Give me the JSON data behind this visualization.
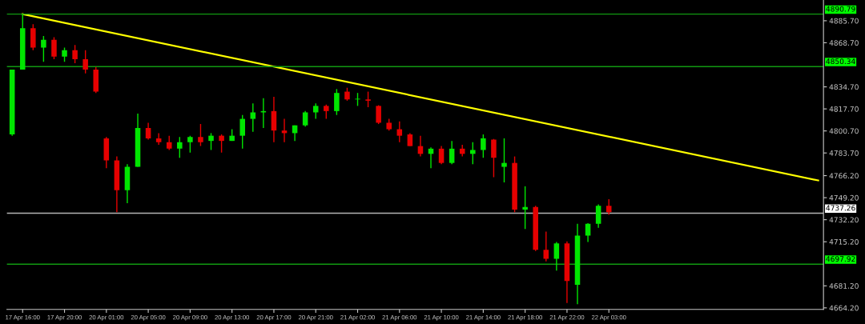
{
  "chart_data": {
    "type": "candlestick",
    "categories": [
      null,
      "17 Apr 16:00",
      null,
      null,
      null,
      "17 Apr 20:00",
      null,
      null,
      null,
      "20 Apr 01:00",
      null,
      null,
      null,
      "20 Apr 05:00",
      null,
      null,
      null,
      "20 Apr 09:00",
      null,
      null,
      null,
      "20 Apr 13:00",
      null,
      null,
      null,
      "20 Apr 17:00",
      null,
      null,
      null,
      "20 Apr 21:00",
      null,
      null,
      null,
      "21 Apr 02:00",
      null,
      null,
      null,
      "21 Apr 06:00",
      null,
      null,
      null,
      "21 Apr 10:00",
      null,
      null,
      null,
      "21 Apr 14:00",
      null,
      null,
      null,
      "21 Apr 18:00",
      null,
      null,
      null,
      "21 Apr 22:00",
      null,
      null,
      null,
      "22 Apr 03:00",
      null,
      null,
      null,
      null,
      null,
      null,
      null,
      null,
      null,
      null,
      null,
      null,
      null,
      null,
      null,
      null,
      null,
      null,
      null,
      null
    ],
    "ohlc": [
      [
        4798,
        4848,
        4797,
        4848
      ],
      [
        4848,
        4890.8,
        4848,
        4880
      ],
      [
        4880,
        4883,
        4863,
        4865
      ],
      [
        4865,
        4874,
        4854,
        4871
      ],
      [
        4871,
        4873,
        4856,
        4858
      ],
      [
        4858,
        4865,
        4854,
        4863
      ],
      [
        4863,
        4867,
        4853,
        4856
      ],
      [
        4856,
        4863,
        4845,
        4848
      ],
      [
        4848,
        4850,
        4830,
        4831
      ],
      [
        4795,
        4796,
        4772,
        4778
      ],
      [
        4778,
        4781,
        4738,
        4755
      ],
      [
        4755,
        4775,
        4745,
        4773
      ],
      [
        4773,
        4814,
        4773,
        4803
      ],
      [
        4803,
        4807,
        4794,
        4795
      ],
      [
        4795,
        4799,
        4790,
        4792
      ],
      [
        4792,
        4797,
        4786,
        4787
      ],
      [
        4787,
        4796,
        4780,
        4792
      ],
      [
        4792,
        4797,
        4784,
        4796
      ],
      [
        4796,
        4806,
        4789,
        4792
      ],
      [
        4793,
        4799,
        4786,
        4797
      ],
      [
        4797,
        4798,
        4784,
        4793
      ],
      [
        4793,
        4802,
        4793,
        4797
      ],
      [
        4797,
        4813,
        4787,
        4810
      ],
      [
        4810,
        4822,
        4800,
        4815
      ],
      [
        4815,
        4826,
        4803,
        4816
      ],
      [
        4816,
        4827,
        4792,
        4801
      ],
      [
        4801,
        4810,
        4792,
        4799
      ],
      [
        4799,
        4805,
        4793,
        4805
      ],
      [
        4805,
        4816,
        4804,
        4815
      ],
      [
        4815,
        4822,
        4810,
        4820
      ],
      [
        4820,
        4821,
        4810,
        4816
      ],
      [
        4816,
        4833,
        4813,
        4830
      ],
      [
        4831,
        4834,
        4824,
        4825
      ],
      [
        4825,
        4830,
        4820,
        4825.5
      ],
      [
        4825,
        4831,
        4819,
        4824
      ],
      [
        4820,
        4820.5,
        4806,
        4807
      ],
      [
        4807,
        4810,
        4801,
        4802
      ],
      [
        4802,
        4808,
        4792,
        4797
      ],
      [
        4798,
        4799,
        4789,
        4789
      ],
      [
        4789,
        4797,
        4781,
        4783
      ],
      [
        4783,
        4788,
        4772,
        4787
      ],
      [
        4787,
        4789,
        4775,
        4776
      ],
      [
        4776,
        4793,
        4775,
        4787
      ],
      [
        4787,
        4790,
        4781,
        4783
      ],
      [
        4783,
        4792,
        4775,
        4786
      ],
      [
        4786,
        4798,
        4780,
        4795
      ],
      [
        4794,
        4794.5,
        4765,
        4780
      ],
      [
        4773,
        4795,
        4761,
        4776
      ],
      [
        4776,
        4781,
        4738,
        4740
      ],
      [
        4740,
        4758,
        4725,
        4742
      ],
      [
        4742,
        4743,
        4708,
        4709
      ],
      [
        4709,
        4723,
        4700,
        4702
      ],
      [
        4702,
        4715,
        4693,
        4714
      ],
      [
        4714,
        4715.5,
        4668,
        4685
      ],
      [
        4682,
        4729,
        4667,
        4720
      ],
      [
        4720,
        4729.5,
        4715,
        4729
      ],
      [
        4729,
        4744,
        4726,
        4743
      ],
      [
        4743,
        4748,
        4736,
        4738
      ],
      null,
      null,
      null,
      null,
      null,
      null,
      null,
      null,
      null,
      null,
      null,
      null,
      null,
      null,
      null,
      null,
      null,
      null,
      null,
      null
    ],
    "colors": [
      "#00e600",
      "#00e600",
      "#e60000",
      "#00e600",
      "#e60000",
      "#00e600",
      "#e60000",
      "#e60000",
      "#e60000",
      "#e60000",
      "#e60000",
      "#00e600",
      "#00e600",
      "#e60000",
      "#e60000",
      "#e60000",
      "#00e600",
      "#00e600",
      "#e60000",
      "#00e600",
      "#e60000",
      "#00e600",
      "#00e600",
      "#00e600",
      "#00e600",
      "#e60000",
      "#e60000",
      "#00e600",
      "#00e600",
      "#00e600",
      "#e60000",
      "#00e600",
      "#e60000",
      "#00e600",
      "#e60000",
      "#e60000",
      "#e60000",
      "#e60000",
      "#e60000",
      "#e60000",
      "#00e600",
      "#e60000",
      "#00e600",
      "#e60000",
      "#00e600",
      "#00e600",
      "#e60000",
      "#00e600",
      "#e60000",
      "#00e600",
      "#e60000",
      "#e60000",
      "#00e600",
      "#e60000",
      "#00e600",
      "#00e600",
      "#00e600",
      "#e60000",
      null,
      null,
      null,
      null,
      null,
      null,
      null,
      null,
      null,
      null,
      null,
      null,
      null,
      null,
      null,
      null,
      null,
      null,
      null,
      null
    ],
    "series": [
      {
        "type": "line",
        "color": "#ffff00",
        "values": [
          null,
          4890.8,
          null,
          null,
          null,
          null,
          null,
          null,
          null,
          null,
          null,
          null,
          null,
          null,
          null,
          null,
          null,
          null,
          null,
          null,
          null,
          null,
          null,
          null,
          null,
          null,
          null,
          null,
          null,
          null,
          null,
          null,
          null,
          null,
          null,
          null,
          null,
          null,
          null,
          null,
          null,
          null,
          null,
          null,
          null,
          null,
          null,
          null,
          null,
          null,
          null,
          null,
          null,
          null,
          null,
          null,
          null,
          null,
          null,
          null,
          null,
          null,
          null,
          null,
          null,
          null,
          null,
          null,
          null,
          null,
          null,
          null,
          null,
          null,
          null,
          null,
          null,
          4762.5
        ]
      }
    ],
    "ylim": [
      4663,
      4901.7
    ],
    "yticks": [
      {
        "value": 4885.7,
        "label": "4885.70"
      },
      {
        "value": 4868.7,
        "label": "4868.70"
      },
      {
        "value": 4834.7,
        "label": "4834.70"
      },
      {
        "value": 4817.7,
        "label": "4817.70"
      },
      {
        "value": 4800.7,
        "label": "4800.70"
      },
      {
        "value": 4783.7,
        "label": "4783.70"
      },
      {
        "value": 4766.2,
        "label": "4766.20"
      },
      {
        "value": 4749.2,
        "label": "4749.20"
      },
      {
        "value": 4732.2,
        "label": "4732.20"
      },
      {
        "value": 4715.2,
        "label": "4715.20"
      },
      {
        "value": 4681.2,
        "label": "4681.20"
      },
      {
        "value": 4664.2,
        "label": "4664.20"
      }
    ],
    "ref_lines": [
      {
        "axis": "y",
        "value": 4890.79,
        "label": "4890.79",
        "color": "#119911"
      },
      {
        "axis": "y",
        "value": 4850.34,
        "label": "4850.34",
        "color": "#119911"
      },
      {
        "axis": "y",
        "value": 4737.26,
        "label": "4737.26",
        "color": "#b4b4b4"
      },
      {
        "axis": "y",
        "value": 4697.92,
        "label": "4697.92",
        "color": "#119911"
      }
    ],
    "grid": false,
    "legend": false
  }
}
